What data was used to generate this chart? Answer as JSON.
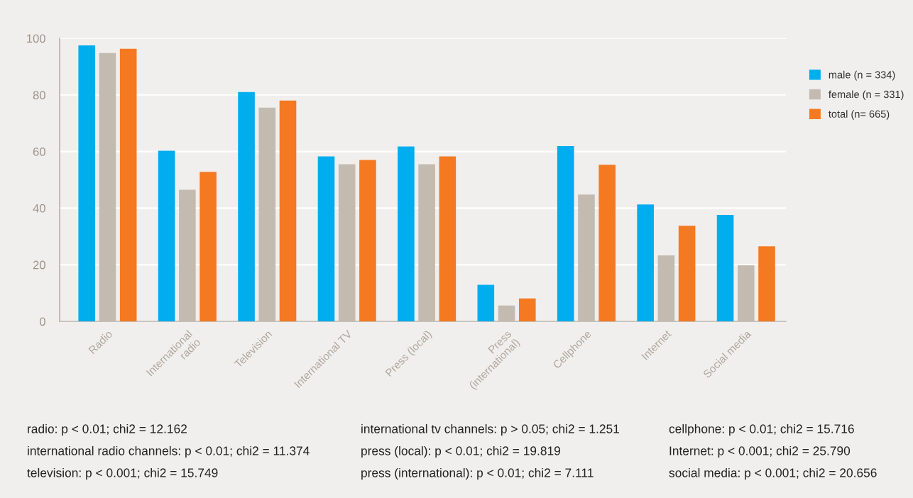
{
  "chart_data": {
    "type": "bar",
    "categories": [
      "Radio",
      "International\nradio",
      "Television",
      "International TV",
      "Press (local)",
      "Press\n(international)",
      "Cellphone",
      "Internet",
      "Social media"
    ],
    "series": [
      {
        "name": "male (n = 334)",
        "color": "#00adee",
        "values": [
          97.5,
          60.3,
          81,
          58.3,
          61.8,
          12.9,
          61.9,
          41.3,
          37.6
        ]
      },
      {
        "name": "female (n = 331)",
        "color": "#c4bbb0",
        "values": [
          94.8,
          46.5,
          75.5,
          55.5,
          55.5,
          5.6,
          44.8,
          23.3,
          19.8
        ]
      },
      {
        "name": "total (n= 665)",
        "color": "#f47920",
        "values": [
          96.3,
          52.8,
          78,
          57,
          58.3,
          8.1,
          55.3,
          33.8,
          26.5
        ]
      }
    ],
    "ylim": [
      0,
      100
    ],
    "yticks": [
      0,
      20,
      40,
      60,
      80,
      100
    ],
    "grid": "y",
    "legend": "right",
    "annotations": [
      "radio: p < 0.01; chi2 = 12.162",
      "international radio channels: p < 0.01; chi2 = 11.374",
      "television: p < 0.001; chi2 = 15.749",
      "international tv channels: p > 0.05; chi2 = 1.251",
      "press (local): p < 0.01; chi2 = 19.819",
      "press (international): p < 0.01; chi2 = 7.111",
      "cellphone: p < 0.01; chi2 = 15.716",
      "Internet: p < 0.001; chi2 = 25.790",
      "social media: p < 0.001; chi2 = 20.656"
    ]
  }
}
